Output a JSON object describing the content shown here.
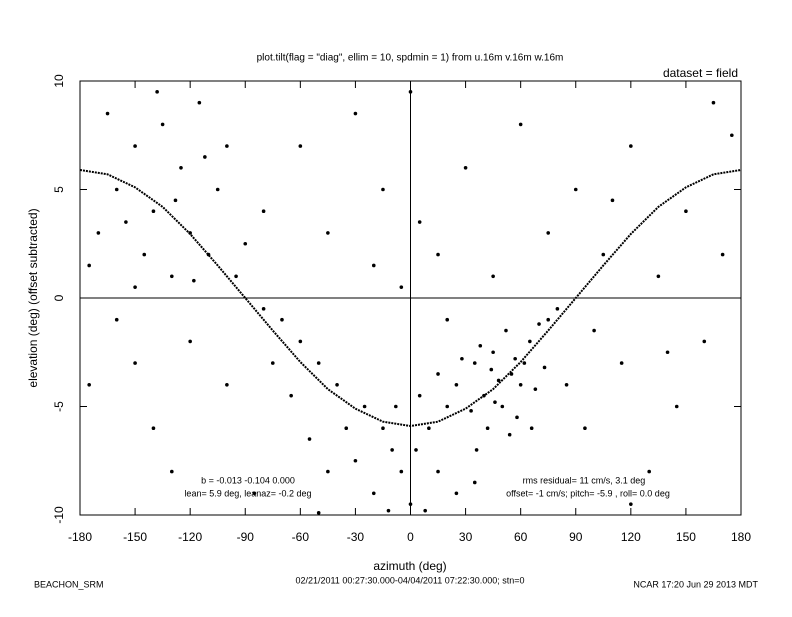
{
  "chart_data": {
    "type": "scatter",
    "title": "plot.tilt(flag = \"diag\", ellim = 10, spdmin = 1) from u.16m v.16m w.16m",
    "dataset_label": "dataset = field",
    "x_label": "azimuth (deg)",
    "y_label": "elevation (deg)  (offset subtracted)",
    "xlim": [
      -180,
      180
    ],
    "ylim": [
      -10,
      10
    ],
    "xticks": [
      -180,
      -150,
      -120,
      -90,
      -60,
      -30,
      0,
      30,
      60,
      90,
      120,
      150,
      180
    ],
    "yticks": [
      -10,
      -5,
      0,
      5,
      10
    ],
    "annotations": [
      "b = -0.013 -0.104  0.000",
      "lean= 5.9 deg, leanaz= -0.2 deg",
      "rms residual= 11 cm/s, 3.1 deg",
      "offset= -1 cm/s; pitch= -5.9 , roll=  0.0 deg"
    ],
    "footer_left": "BEACHON_SRM",
    "footer_center": "02/21/2011 00:27:30.000-04/04/2011 07:22:30.000; stn=0",
    "footer_right": "NCAR 17:20 Jun 29 2013 MDT",
    "color": "#000000",
    "x": [
      35,
      40,
      45,
      50,
      55,
      60,
      65,
      42,
      48,
      52,
      58,
      62,
      68,
      38,
      33,
      46,
      54,
      70,
      57,
      44,
      25,
      20,
      15,
      10,
      5,
      28,
      73,
      75,
      66,
      36,
      -5,
      -10,
      -15,
      -20,
      -25,
      -30,
      0,
      3,
      -8,
      -12,
      -35,
      -40,
      -45,
      -50,
      -55,
      -60,
      -65,
      -70,
      -75,
      -80,
      15,
      25,
      35,
      8,
      -170,
      -160,
      -150,
      -145,
      -140,
      -135,
      -130,
      -125,
      -120,
      -115,
      -110,
      -105,
      -100,
      -95,
      -150,
      -165,
      -175,
      -155,
      -128,
      -112,
      -138,
      -118,
      -90,
      -80,
      -60,
      -45,
      -30,
      -15,
      0,
      15,
      30,
      45,
      60,
      75,
      90,
      105,
      120,
      135,
      150,
      165,
      175,
      170,
      160,
      145,
      130,
      115,
      100,
      95,
      85,
      -100,
      -120,
      -140,
      -160,
      -175,
      -130,
      -85,
      -150,
      120,
      140,
      110,
      -50,
      -20,
      20,
      80,
      -5,
      5
    ],
    "values": [
      -3,
      -4.5,
      -2.5,
      -5,
      -3.5,
      -4,
      -2,
      -6,
      -3.8,
      -1.5,
      -5.5,
      -3,
      -4.2,
      -2.2,
      -5.2,
      -4.8,
      -6.3,
      -1.2,
      -2.8,
      -3.3,
      -4,
      -5,
      -3.5,
      -6,
      -4.5,
      -2.8,
      -3.2,
      -1,
      -6,
      -7,
      -8,
      -7,
      -6,
      -9,
      -5,
      -7.5,
      -9.5,
      -7,
      -5,
      -9.8,
      -6,
      -4,
      -8,
      -3,
      -6.5,
      -2,
      -4.5,
      -1,
      -3,
      -0.5,
      -8,
      -9,
      -8.5,
      -9.8,
      3,
      5,
      7,
      2,
      4,
      8,
      1,
      6,
      3,
      9,
      2,
      5,
      7,
      1,
      0.5,
      8.5,
      1.5,
      3.5,
      4.5,
      6.5,
      9.5,
      0.8,
      2.5,
      4,
      7,
      3,
      8.5,
      5,
      9.5,
      2,
      6,
      1,
      8,
      3,
      5,
      2,
      7,
      1,
      4,
      9,
      7.5,
      2,
      -2,
      -5,
      -8,
      -3,
      -1.5,
      -6,
      -4,
      -4,
      -2,
      -6,
      -1,
      -4,
      -8,
      -9,
      -3,
      -9.5,
      -2.5,
      4.5,
      -9.9,
      1.5,
      -1,
      -0.5,
      0.5,
      3.5
    ],
    "fit": {
      "x": [
        -180,
        -165,
        -150,
        -135,
        -120,
        -105,
        -90,
        -75,
        -60,
        -45,
        -30,
        -15,
        0,
        15,
        30,
        45,
        60,
        75,
        90,
        105,
        120,
        135,
        150,
        165,
        180
      ],
      "values": [
        5.9,
        5.7,
        5.1,
        4.2,
        2.95,
        1.5,
        0,
        -1.5,
        -2.95,
        -4.2,
        -5.1,
        -5.7,
        -5.9,
        -5.7,
        -5.1,
        -4.2,
        -2.95,
        -1.5,
        0,
        1.5,
        2.95,
        4.2,
        5.1,
        5.7,
        5.9
      ]
    }
  }
}
